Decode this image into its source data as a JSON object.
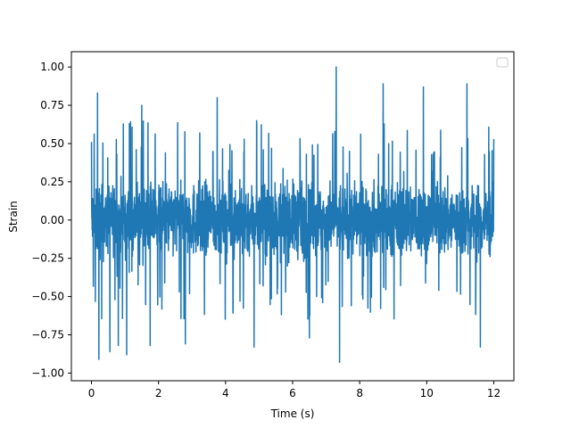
{
  "chart_data": {
    "type": "line",
    "title": "",
    "xlabel": "Time (s)",
    "ylabel": "Strain",
    "xlim": [
      -0.6,
      12.6
    ],
    "ylim": [
      -1.05,
      1.1
    ],
    "x_ticks": [
      0,
      2,
      4,
      6,
      8,
      10,
      12
    ],
    "x_tick_labels": [
      "0",
      "2",
      "4",
      "6",
      "8",
      "10",
      "12"
    ],
    "y_ticks": [
      -1.0,
      -0.75,
      -0.5,
      -0.25,
      0.0,
      0.25,
      0.5,
      0.75,
      1.0
    ],
    "y_tick_labels": [
      "−1.00",
      "−0.75",
      "−0.50",
      "−0.25",
      "0.00",
      "0.25",
      "0.50",
      "0.75",
      "1.00"
    ],
    "grid": false,
    "legend": {
      "placement": "top-right",
      "entries": []
    },
    "series": [
      {
        "color": "#1f77b4",
        "x_range": [
          0,
          12
        ],
        "description_values": {
          "typical_band": [
            -0.4,
            0.4
          ],
          "peak_points": [
            {
              "x": 0.0,
              "y": 0.51
            },
            {
              "x": 0.18,
              "y": 0.83
            },
            {
              "x": 0.22,
              "y": -0.91
            },
            {
              "x": 0.55,
              "y": -0.86
            },
            {
              "x": 0.8,
              "y": -0.82
            },
            {
              "x": 1.05,
              "y": -0.88
            },
            {
              "x": 1.5,
              "y": 0.75
            },
            {
              "x": 1.75,
              "y": -0.82
            },
            {
              "x": 2.8,
              "y": -0.81
            },
            {
              "x": 3.75,
              "y": 0.8
            },
            {
              "x": 4.85,
              "y": -0.83
            },
            {
              "x": 6.5,
              "y": -0.77
            },
            {
              "x": 7.3,
              "y": 1.0
            },
            {
              "x": 7.4,
              "y": -0.93
            },
            {
              "x": 8.7,
              "y": 0.89
            },
            {
              "x": 9.9,
              "y": 0.87
            },
            {
              "x": 11.2,
              "y": 0.89
            },
            {
              "x": 11.6,
              "y": -0.83
            },
            {
              "x": 12.0,
              "y": 0.53
            }
          ]
        }
      }
    ]
  }
}
